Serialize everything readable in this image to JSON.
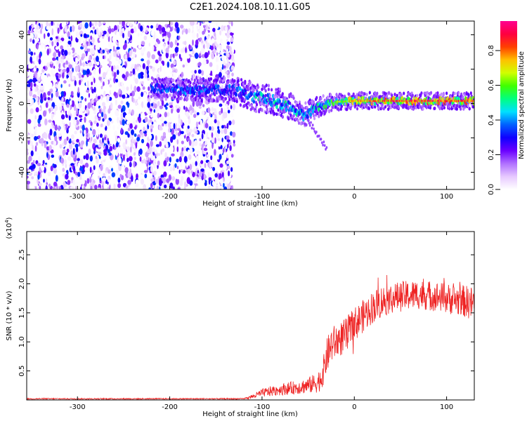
{
  "title": "C2E1.2024.108.10.11.G05",
  "chart_data": [
    {
      "type": "heatmap",
      "xlabel": "Height of straight line (km)",
      "ylabel": "Frequency (Hz)",
      "xlim": [
        -355,
        130
      ],
      "ylim": [
        -50,
        48
      ],
      "x_ticks": [
        -300,
        -200,
        -100,
        0,
        100
      ],
      "y_ticks": [
        -40,
        -20,
        0,
        20,
        40
      ],
      "colorbar": {
        "label": "Normalized spectral amplitude",
        "range": [
          0,
          0.97
        ],
        "ticks": [
          0.0,
          0.2,
          0.4,
          0.6,
          0.8
        ],
        "colormap": [
          "#ffffff",
          "#e6c8ff",
          "#b070ff",
          "#6a00ff",
          "#1000ff",
          "#0060ff",
          "#00e0ff",
          "#00ff80",
          "#40ff00",
          "#d0ff00",
          "#ffc000",
          "#ff4000",
          "#ff0040",
          "#ff0090"
        ]
      },
      "noise_region_x": [
        -355,
        -130
      ],
      "ridge": [
        {
          "x": -220,
          "freq": 9,
          "width": 5,
          "amp": 0.35
        },
        {
          "x": -185,
          "freq": 8,
          "width": 5,
          "amp": 0.4
        },
        {
          "x": -130,
          "freq": 8,
          "width": 6,
          "amp": 0.35
        },
        {
          "x": -110,
          "freq": 4,
          "width": 7,
          "amp": 0.5
        },
        {
          "x": -90,
          "freq": 2,
          "width": 7,
          "amp": 0.5
        },
        {
          "x": -70,
          "freq": -2,
          "width": 7,
          "amp": 0.5
        },
        {
          "x": -55,
          "freq": -7,
          "width": 6,
          "amp": 0.45
        },
        {
          "x": -40,
          "freq": -2,
          "width": 5,
          "amp": 0.5
        },
        {
          "x": -20,
          "freq": 1,
          "width": 4,
          "amp": 0.6
        },
        {
          "x": 0,
          "freq": 1.5,
          "width": 4,
          "amp": 0.7
        },
        {
          "x": 40,
          "freq": 1.5,
          "width": 4,
          "amp": 0.8
        },
        {
          "x": 80,
          "freq": 1.5,
          "width": 4,
          "amp": 0.8
        },
        {
          "x": 130,
          "freq": 1.5,
          "width": 4,
          "amp": 0.75
        }
      ]
    },
    {
      "type": "line",
      "xlabel": "Height of straight line (km)",
      "ylabel": "SNR (10 * v/v)",
      "y_multiplier": "(x10",
      "y_multiplier_exp": "4",
      "y_multiplier_close": ")",
      "xlim": [
        -355,
        130
      ],
      "ylim": [
        0,
        2.9
      ],
      "x_ticks": [
        -300,
        -200,
        -100,
        0,
        100
      ],
      "y_ticks": [
        0.5,
        1.0,
        1.5,
        2.0,
        2.5
      ],
      "series": [
        {
          "color": "#ee2222",
          "x": [
            -355,
            -300,
            -250,
            -200,
            -150,
            -120,
            -110,
            -100,
            -90,
            -80,
            -70,
            -60,
            -50,
            -40,
            -35,
            -30,
            -25,
            -20,
            -10,
            0,
            10,
            20,
            30,
            40,
            50,
            60,
            70,
            80,
            90,
            100,
            110,
            120,
            130
          ],
          "y": [
            0.02,
            0.02,
            0.02,
            0.02,
            0.02,
            0.02,
            0.06,
            0.12,
            0.15,
            0.18,
            0.2,
            0.22,
            0.25,
            0.3,
            0.4,
            0.75,
            0.95,
            1.0,
            1.1,
            1.3,
            1.45,
            1.6,
            1.7,
            1.75,
            1.78,
            1.8,
            1.82,
            1.8,
            1.78,
            1.75,
            1.72,
            1.7,
            1.65
          ],
          "noise": [
            0.01,
            0.01,
            0.01,
            0.01,
            0.01,
            0.01,
            0.04,
            0.07,
            0.09,
            0.1,
            0.11,
            0.12,
            0.14,
            0.18,
            0.22,
            0.3,
            0.32,
            0.3,
            0.3,
            0.3,
            0.28,
            0.28,
            0.28,
            0.26,
            0.26,
            0.26,
            0.26,
            0.26,
            0.26,
            0.26,
            0.27,
            0.28,
            0.3
          ]
        }
      ]
    }
  ]
}
